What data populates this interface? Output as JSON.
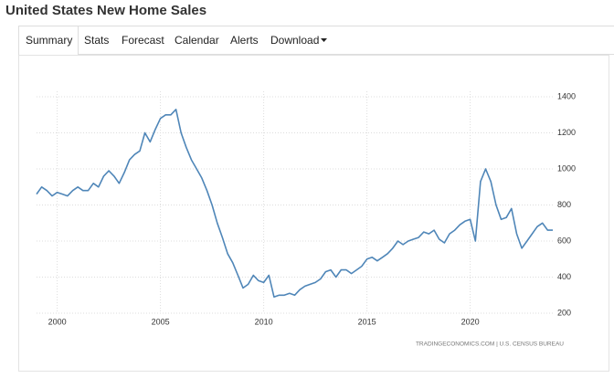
{
  "header": {
    "title": "United States New Home Sales"
  },
  "tabs": [
    "Summary",
    "Stats",
    "Forecast",
    "Calendar",
    "Alerts",
    "Download"
  ],
  "source": "TRADINGECONOMICS.COM  |  U.S. CENSUS BUREAU",
  "chart_data": {
    "type": "line",
    "color": "#4f86b8",
    "grid": true,
    "x": [
      1999,
      1999.25,
      1999.5,
      1999.75,
      2000,
      2000.25,
      2000.5,
      2000.75,
      2001,
      2001.25,
      2001.5,
      2001.75,
      2002,
      2002.25,
      2002.5,
      2002.75,
      2003,
      2003.25,
      2003.5,
      2003.75,
      2004,
      2004.25,
      2004.5,
      2004.75,
      2005,
      2005.25,
      2005.5,
      2005.75,
      2006,
      2006.25,
      2006.5,
      2006.75,
      2007,
      2007.25,
      2007.5,
      2007.75,
      2008,
      2008.25,
      2008.5,
      2008.75,
      2009,
      2009.25,
      2009.5,
      2009.75,
      2010,
      2010.25,
      2010.5,
      2010.75,
      2011,
      2011.25,
      2011.5,
      2011.75,
      2012,
      2012.25,
      2012.5,
      2012.75,
      2013,
      2013.25,
      2013.5,
      2013.75,
      2014,
      2014.25,
      2014.5,
      2014.75,
      2015,
      2015.25,
      2015.5,
      2015.75,
      2016,
      2016.25,
      2016.5,
      2016.75,
      2017,
      2017.25,
      2017.5,
      2017.75,
      2018,
      2018.25,
      2018.5,
      2018.75,
      2019,
      2019.25,
      2019.5,
      2019.75,
      2020,
      2020.25,
      2020.5,
      2020.75,
      2021,
      2021.25,
      2021.5,
      2021.75,
      2022,
      2022.25,
      2022.5,
      2022.75,
      2023,
      2023.25,
      2023.5,
      2023.75,
      2024
    ],
    "values": [
      860,
      900,
      880,
      850,
      870,
      860,
      850,
      880,
      900,
      880,
      880,
      920,
      900,
      960,
      990,
      960,
      920,
      980,
      1050,
      1080,
      1100,
      1200,
      1150,
      1220,
      1280,
      1300,
      1300,
      1330,
      1200,
      1120,
      1050,
      1000,
      950,
      880,
      800,
      700,
      620,
      530,
      480,
      410,
      340,
      360,
      410,
      380,
      370,
      410,
      290,
      300,
      300,
      310,
      300,
      330,
      350,
      360,
      370,
      390,
      430,
      440,
      400,
      440,
      440,
      420,
      440,
      460,
      500,
      510,
      490,
      510,
      530,
      560,
      600,
      580,
      600,
      610,
      620,
      650,
      640,
      660,
      610,
      590,
      640,
      660,
      690,
      710,
      720,
      600,
      930,
      1000,
      930,
      800,
      720,
      730,
      780,
      640,
      560,
      600,
      640,
      680,
      700,
      660,
      660
    ],
    "xlim": [
      1999,
      2024
    ],
    "xticks": [
      2000,
      2005,
      2010,
      2015,
      2020
    ],
    "ylim": [
      200,
      1400
    ],
    "yticks": [
      200,
      400,
      600,
      800,
      1000,
      1200,
      1400
    ]
  }
}
